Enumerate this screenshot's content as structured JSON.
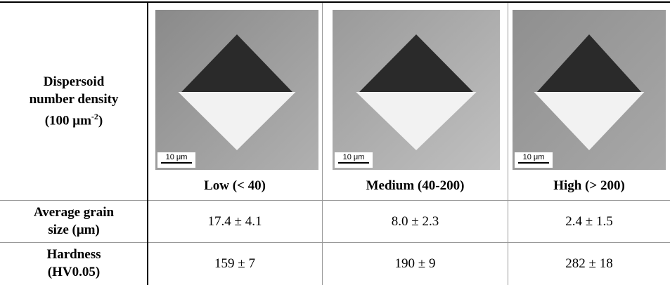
{
  "header": {
    "label_lines": [
      "Dispersoid",
      "number density"
    ],
    "label_unit": "(100 μm",
    "label_unit_sup": "-2",
    "label_unit_close": ")",
    "columns": [
      {
        "name": "Low (< 40)",
        "scale_bar": "10 μm"
      },
      {
        "name": "Medium (40-200)",
        "scale_bar": "10 μm"
      },
      {
        "name": "High (> 200)",
        "scale_bar": "10 μm"
      }
    ]
  },
  "rows": [
    {
      "label_lines": [
        "Average grain",
        "size (μm)"
      ],
      "cells": [
        "17.4 ± 4.1",
        "8.0 ± 2.3",
        "2.4 ± 1.5"
      ]
    },
    {
      "label_lines": [
        "Hardness",
        "(HV0.05)"
      ],
      "cells": [
        "159 ± 7",
        "190 ± 9",
        "282 ± 18"
      ]
    }
  ]
}
